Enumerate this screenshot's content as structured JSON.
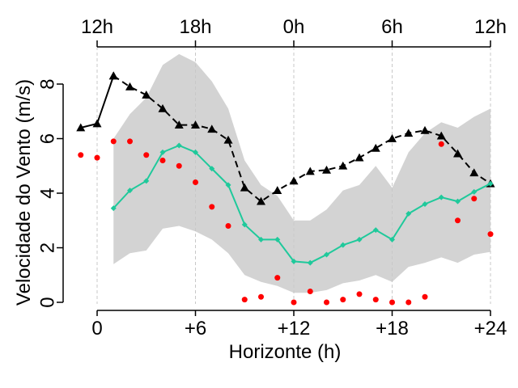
{
  "chart_data": {
    "type": "line",
    "title": "",
    "xlabel": "Horizonte (h)",
    "ylabel": "Velocidade do Vento (m/s)",
    "xlim": [
      -2,
      25
    ],
    "ylim": [
      0,
      9
    ],
    "grid": "vertical dashed gridlines at bottom-axis ticks",
    "x_ticks": [
      0,
      6,
      12,
      18,
      24
    ],
    "x_tick_labels": [
      "0",
      "+6",
      "+12",
      "+18",
      "+24"
    ],
    "y_ticks": [
      0,
      2,
      4,
      6,
      8
    ],
    "y_tick_labels": [
      "0",
      "2",
      "4",
      "6",
      "8"
    ],
    "top_axis": {
      "ticks": [
        0,
        6,
        12,
        18,
        24
      ],
      "labels": [
        "12h",
        "18h",
        "0h",
        "6h",
        "12h"
      ]
    },
    "band": {
      "x": [
        1,
        2,
        3,
        4,
        5,
        6,
        7,
        8,
        9,
        10,
        11,
        12,
        13,
        14,
        15,
        16,
        17,
        18,
        19,
        20,
        21,
        22,
        23,
        24
      ],
      "upper": [
        6.0,
        6.9,
        7.5,
        8.7,
        9.1,
        8.8,
        8.1,
        7.1,
        5.2,
        4.3,
        3.9,
        3.0,
        3.0,
        3.4,
        4.1,
        4.3,
        5.0,
        4.2,
        5.5,
        6.2,
        6.6,
        6.4,
        6.8,
        7.1
      ],
      "lower": [
        1.4,
        1.8,
        1.9,
        2.7,
        2.8,
        2.6,
        2.3,
        1.8,
        1.0,
        0.75,
        0.6,
        0.35,
        0.35,
        0.45,
        0.7,
        0.8,
        1.0,
        0.75,
        1.3,
        1.45,
        1.65,
        1.45,
        1.75,
        1.85
      ],
      "color": "#d3d3d3"
    },
    "series": [
      {
        "style": "solid line with filled triangles",
        "color": "#000000",
        "x": [
          -1,
          0,
          1
        ],
        "values": [
          6.4,
          6.55,
          8.3
        ]
      },
      {
        "style": "dashed line with filled triangles",
        "color": "#000000",
        "x": [
          1,
          2,
          3,
          4,
          5,
          6,
          7,
          8,
          9,
          10,
          11,
          12,
          13,
          14,
          15,
          16,
          17,
          18,
          19,
          20,
          21,
          22,
          23,
          24
        ],
        "values": [
          8.3,
          7.9,
          7.6,
          7.1,
          6.5,
          6.5,
          6.35,
          5.95,
          4.2,
          3.7,
          4.1,
          4.45,
          4.8,
          4.85,
          5.0,
          5.3,
          5.65,
          6.0,
          6.2,
          6.3,
          6.1,
          5.45,
          4.75,
          4.35
        ]
      },
      {
        "style": "solid line with filled diamonds",
        "color": "#1fc99b",
        "x": [
          1,
          2,
          3,
          4,
          5,
          6,
          7,
          8,
          9,
          10,
          11,
          12,
          13,
          14,
          15,
          16,
          17,
          18,
          19,
          20,
          21,
          22,
          23,
          24
        ],
        "values": [
          3.45,
          4.1,
          4.45,
          5.5,
          5.75,
          5.5,
          4.9,
          4.3,
          2.85,
          2.3,
          2.3,
          1.5,
          1.45,
          1.75,
          2.1,
          2.3,
          2.65,
          2.3,
          3.25,
          3.6,
          3.85,
          3.7,
          4.05,
          4.35
        ]
      },
      {
        "style": "points",
        "color": "#ff0000",
        "x": [
          -1,
          0,
          1,
          2,
          3,
          4,
          5,
          6,
          7,
          8,
          9,
          10,
          11,
          12,
          13,
          14,
          15,
          16,
          17,
          18,
          19,
          20,
          21,
          22,
          23,
          24
        ],
        "values": [
          5.4,
          5.3,
          5.9,
          5.9,
          5.4,
          5.2,
          5.0,
          4.4,
          3.5,
          2.8,
          0.1,
          0.2,
          0.9,
          0.0,
          0.4,
          0.0,
          0.1,
          0.3,
          0.1,
          0.0,
          0.0,
          0.2,
          5.8,
          3.0,
          3.8,
          2.5
        ]
      }
    ]
  }
}
